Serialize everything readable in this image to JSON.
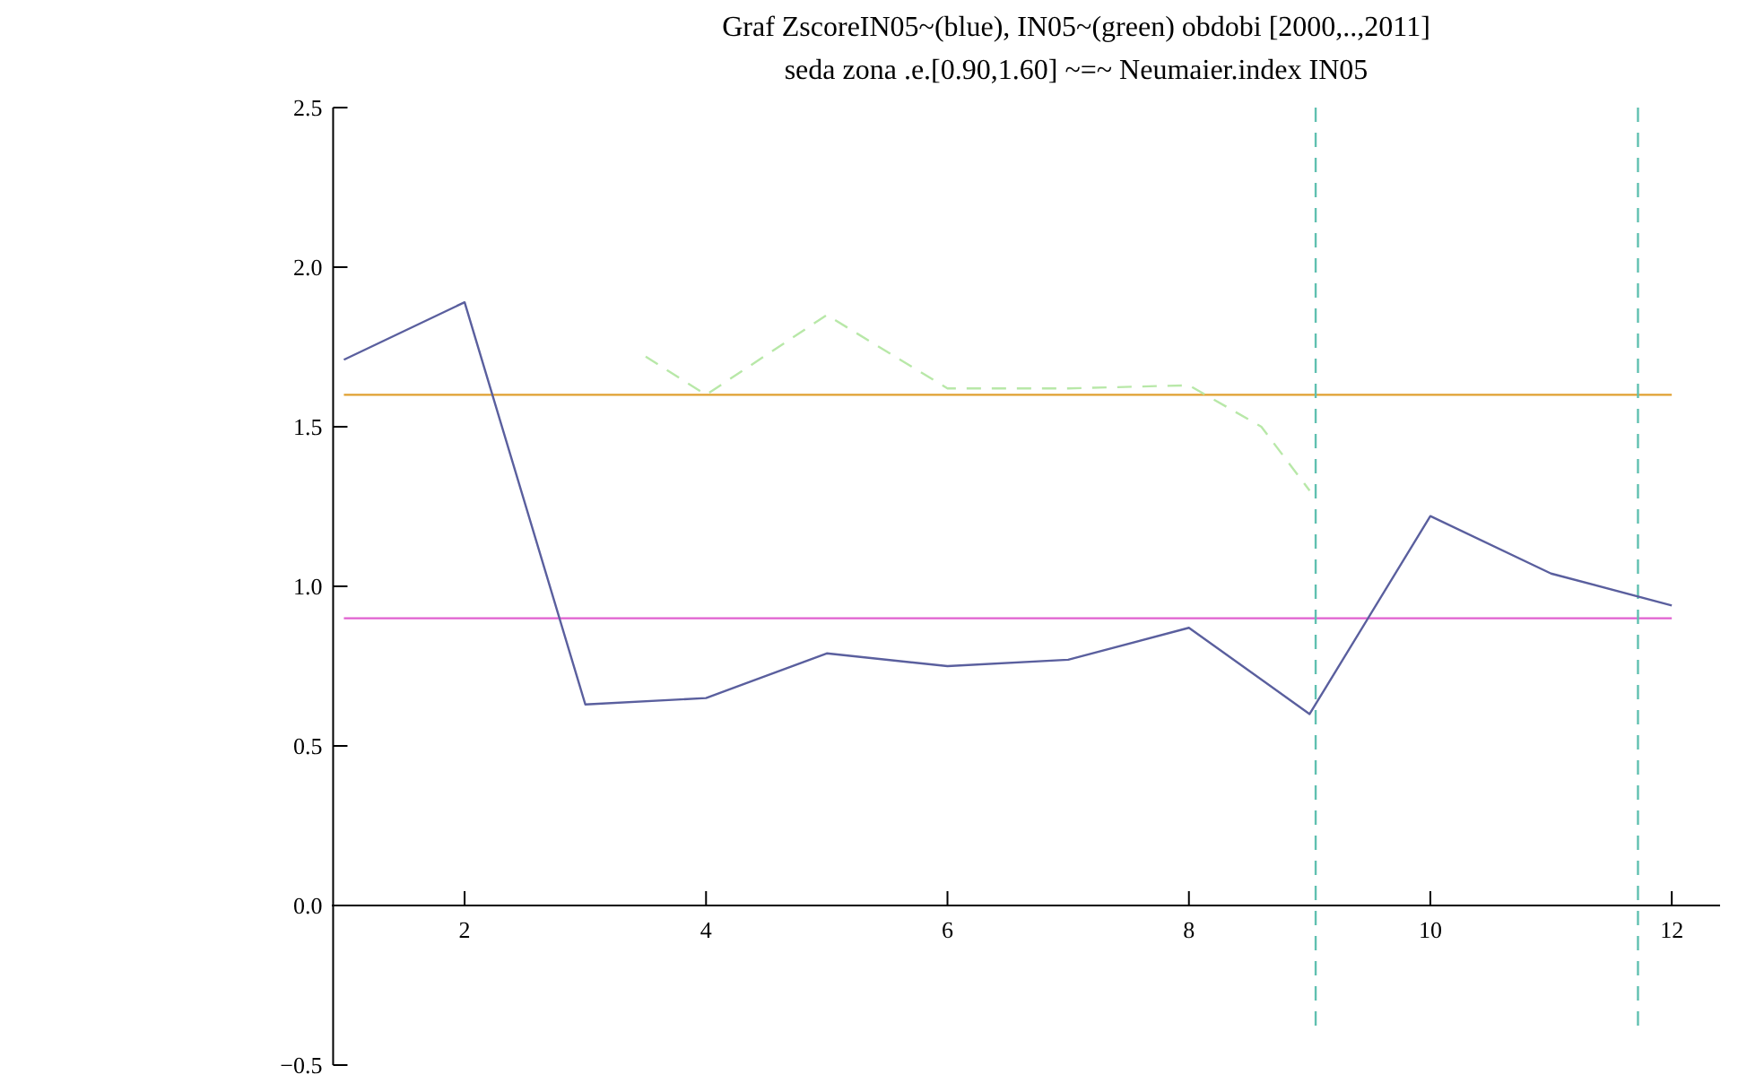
{
  "chart_data": {
    "type": "line",
    "title": "Graf ZscoreIN05~(blue), IN05~(green) obdobi [2000,..,2011]",
    "subtitle": "seda zona .e.[0.90,1.60] ~=~ Neumaier.index IN05",
    "series": [
      {
        "color": "#5a5f9e",
        "x": [
          1,
          2,
          3,
          4,
          5,
          6,
          7,
          8,
          9,
          10,
          11,
          12
        ],
        "values": [
          1.71,
          1.89,
          0.63,
          0.65,
          0.79,
          0.75,
          0.77,
          0.87,
          0.6,
          1.22,
          1.04,
          0.94
        ]
      },
      {
        "color": "#b8e8a8",
        "x": [
          3.5,
          4,
          5,
          6,
          7,
          8,
          8.6,
          9
        ],
        "values": [
          1.72,
          1.6,
          1.85,
          1.62,
          1.62,
          1.63,
          1.5,
          1.3
        ],
        "line_style": "dashed"
      }
    ],
    "xlim": [
      0.9,
      12.4
    ],
    "xticks": [
      2,
      4,
      6,
      8,
      10,
      12
    ],
    "ylim": [
      -0.5,
      2.5
    ],
    "yticks": [
      {
        "value": -0.5,
        "label": "−0.5"
      },
      {
        "value": 0,
        "label": "0.0"
      },
      {
        "value": 0.5,
        "label": "0.5"
      },
      {
        "value": 1,
        "label": "1.0"
      },
      {
        "value": 1.5,
        "label": "1.5"
      },
      {
        "value": 2,
        "label": "2.0"
      },
      {
        "value": 2.5,
        "label": "2.5"
      }
    ],
    "ref_lines": [
      {
        "axis": "y",
        "value": 1.6,
        "color": "#e0a030"
      },
      {
        "axis": "y",
        "value": 0.9,
        "color": "#e060d0"
      },
      {
        "axis": "x",
        "value": 9.05,
        "color": "#60c0b0",
        "line_style": "dashed"
      },
      {
        "axis": "x",
        "value": 11.72,
        "color": "#60c0b0",
        "line_style": "dashed"
      }
    ],
    "grid": false,
    "marker": "none",
    "line_style": "solid"
  }
}
